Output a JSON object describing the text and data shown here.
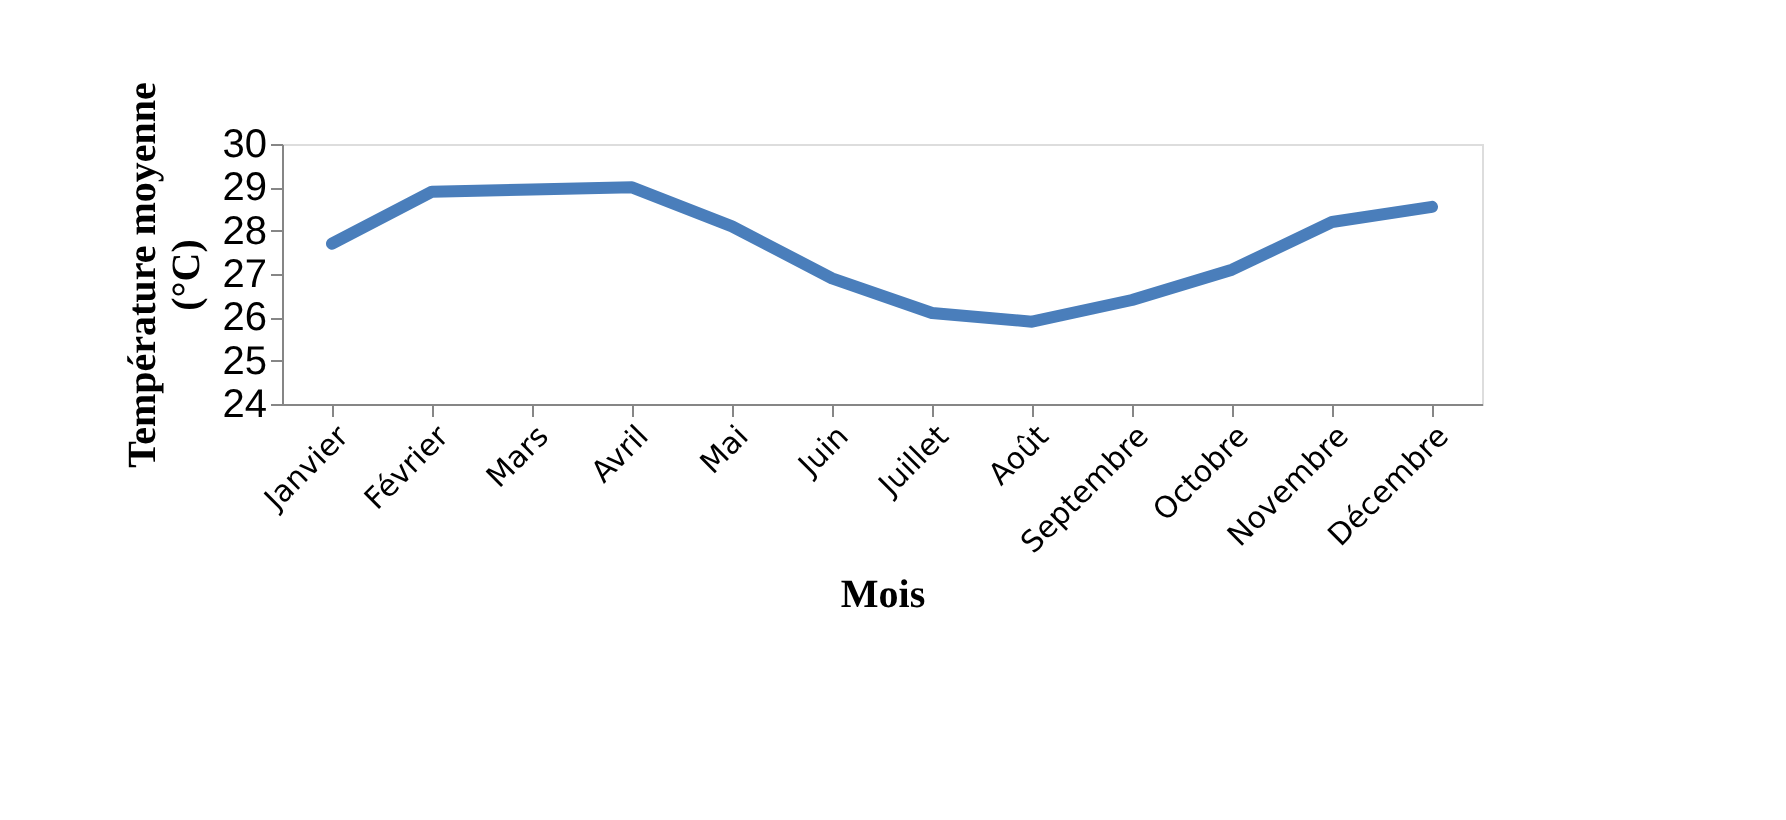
{
  "chart_data": {
    "type": "line",
    "xlabel": "Mois",
    "ylabel": "Température moyenne (°C)",
    "categories": [
      "Janvier",
      "Février",
      "Mars",
      "Avril",
      "Mai",
      "Juin",
      "Juillet",
      "Août",
      "Septembre",
      "Octobre",
      "Novembre",
      "Décembre"
    ],
    "series": [
      {
        "color": "#4a7ebb",
        "values": [
          27.7,
          28.9,
          28.95,
          29.0,
          28.1,
          26.9,
          26.1,
          25.9,
          26.4,
          27.1,
          28.2,
          28.55
        ]
      }
    ],
    "ylim": [
      24,
      30
    ],
    "yticks": [
      24,
      25,
      26,
      27,
      28,
      29,
      30
    ],
    "grid": false,
    "marker": "none",
    "line_style": "solid"
  }
}
